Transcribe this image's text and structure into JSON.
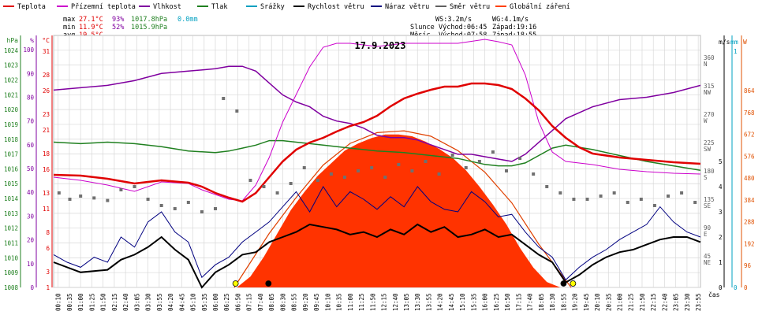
{
  "legend": [
    {
      "label": "Teplota",
      "color": "#e00000"
    },
    {
      "label": "Přízemní teplota",
      "color": "#cc00cc"
    },
    {
      "label": "Vlhkost",
      "color": "#8000a0"
    },
    {
      "label": "Tlak",
      "color": "#208020"
    },
    {
      "label": "Srážky",
      "color": "#00a0c0"
    },
    {
      "label": "Rychlost větru",
      "color": "#000000"
    },
    {
      "label": "Náraz větru",
      "color": "#000080"
    },
    {
      "label": "Směr větru",
      "color": "#606060"
    },
    {
      "label": "Globální záření",
      "color": "#ff4000"
    }
  ],
  "stats": {
    "max_label": "max",
    "max_temp": "27.1°C",
    "max_hum": "93%",
    "max_press": "1017.8hPa",
    "max_rain": "0.0mm",
    "min_label": "min",
    "min_temp": "11.9°C",
    "min_hum": "52%",
    "min_press": "1015.9hPa",
    "avg_label": "avg",
    "avg_temp": "19.5°C",
    "ws": "WS:3.2m/s",
    "wg": "WG:4.1m/s",
    "sun_label": "Slunce",
    "sun_rise": "Východ:06:45",
    "sun_set": "Západ:19:16",
    "moon_label": "Měsíc",
    "moon_rise": "Východ:07:58",
    "moon_set": "Západ:18:55"
  },
  "colors": {
    "temp": "#e00000",
    "ground": "#cc00cc",
    "hum": "#8000a0",
    "press": "#208020",
    "rain": "#00a0c0",
    "wind": "#000000",
    "gust": "#000080",
    "dir": "#707070",
    "rad": "#ff3300",
    "rad_clear": "#e04000",
    "grid": "#d8d8d8",
    "axis_orange": "#e05000"
  },
  "chart_data": {
    "type": "line",
    "title": "17.9.2023",
    "x_label": "čas",
    "x_ticks": [
      "00:10",
      "00:35",
      "01:00",
      "01:25",
      "01:50",
      "02:15",
      "02:40",
      "03:05",
      "03:30",
      "03:55",
      "04:20",
      "04:45",
      "05:10",
      "05:35",
      "06:00",
      "06:25",
      "06:50",
      "07:15",
      "07:40",
      "08:05",
      "08:30",
      "08:55",
      "09:20",
      "09:45",
      "10:10",
      "10:35",
      "11:00",
      "11:25",
      "11:50",
      "12:15",
      "12:40",
      "13:05",
      "13:30",
      "13:55",
      "14:20",
      "14:45",
      "15:10",
      "15:35",
      "16:00",
      "16:25",
      "16:50",
      "17:15",
      "17:40",
      "18:05",
      "18:30",
      "18:55",
      "19:20",
      "19:45",
      "20:10",
      "20:35",
      "21:00",
      "21:25",
      "21:50",
      "22:15",
      "22:40",
      "23:05",
      "23:30",
      "23:55"
    ],
    "axes": {
      "hpa": {
        "label": "hPa",
        "ticks": [
          "1008",
          "1009",
          "1010",
          "1011",
          "1012",
          "1013",
          "1014",
          "1015",
          "1016",
          "1017",
          "1018",
          "1019",
          "1020",
          "1021",
          "1022",
          "1023",
          "1024"
        ],
        "range": [
          1008,
          1025
        ]
      },
      "hum": {
        "label": "%",
        "ticks": [
          "0",
          "10",
          "20",
          "30",
          "40",
          "50",
          "60",
          "70",
          "80",
          "90",
          "100"
        ],
        "range": [
          0,
          106
        ]
      },
      "temp": {
        "label": "°C",
        "ticks": [
          "1",
          "3",
          "6",
          "8",
          "11",
          "13",
          "16",
          "18",
          "21",
          "23",
          "26",
          "28",
          "31"
        ],
        "range": [
          1,
          33
        ]
      },
      "dir": {
        "label": "m/s",
        "ticks": [
          "45 NE",
          "90 E",
          "135 SE",
          "180 S",
          "225 SW",
          "270 W",
          "315 NW",
          "360 N"
        ],
        "range": [
          0,
          400
        ]
      },
      "ms": {
        "label": "m/s",
        "ticks": [
          "0",
          "1",
          "2",
          "3",
          "4",
          "5"
        ],
        "range": [
          0,
          10
        ]
      },
      "mm": {
        "label": "mm",
        "ticks": [
          "0",
          "1"
        ],
        "range": [
          0,
          1
        ]
      },
      "w": {
        "label": "W",
        "ticks": [
          "0",
          "96",
          "192",
          "288",
          "384",
          "480",
          "576",
          "672",
          "768",
          "864"
        ],
        "range": [
          0,
          1400
        ]
      }
    },
    "series": [
      {
        "name": "Teplota",
        "unit": "°C",
        "x": [
          0,
          1,
          2,
          3,
          4,
          5,
          5.5,
          6,
          6.5,
          7,
          7.5,
          8,
          8.5,
          9,
          9.5,
          10,
          10.5,
          11,
          11.5,
          12,
          12.5,
          13,
          13.5,
          14,
          14.5,
          15,
          15.5,
          16,
          16.5,
          17,
          17.5,
          18,
          18.5,
          19,
          19.5,
          20,
          21,
          22,
          23,
          24
        ],
        "y": [
          15.3,
          15.2,
          14.8,
          14.2,
          14.6,
          14.3,
          13.8,
          13.0,
          12.4,
          11.9,
          13.0,
          15.0,
          17.0,
          18.5,
          19.4,
          20.0,
          20.8,
          21.5,
          22.0,
          22.8,
          24.0,
          25.0,
          25.6,
          26.1,
          26.5,
          26.5,
          26.9,
          26.9,
          26.7,
          26.2,
          25.0,
          23.5,
          21.5,
          20.0,
          18.8,
          18.0,
          17.5,
          17.2,
          16.9,
          16.7
        ]
      },
      {
        "name": "Přízemní teplota",
        "unit": "°C",
        "x": [
          0,
          1,
          2,
          3,
          4,
          5,
          5.5,
          6,
          6.5,
          7,
          7.5,
          8,
          8.5,
          9,
          9.5,
          10,
          10.5,
          11,
          12,
          13,
          14,
          15,
          16,
          16.5,
          17,
          17.5,
          18,
          18.5,
          19,
          20,
          21,
          22,
          23,
          24
        ],
        "y": [
          15.0,
          14.6,
          14.0,
          13.2,
          14.4,
          14.2,
          13.4,
          12.8,
          12.2,
          12.0,
          14.0,
          17.5,
          22.0,
          25.5,
          29.0,
          31.5,
          32.0,
          32.0,
          31.6,
          32.0,
          32.0,
          32.0,
          32.5,
          32.2,
          31.8,
          28.0,
          22.0,
          18.2,
          17.0,
          16.6,
          16.0,
          15.7,
          15.5,
          15.4
        ]
      },
      {
        "name": "Vlhkost",
        "unit": "%",
        "x": [
          0,
          1,
          2,
          3,
          4,
          5,
          6,
          6.5,
          7,
          7.5,
          8,
          8.5,
          9,
          9.5,
          10,
          10.5,
          11,
          11.5,
          12,
          12.5,
          13,
          13.5,
          14,
          14.5,
          15,
          15.5,
          16,
          16.5,
          17,
          17.5,
          18,
          18.5,
          19,
          20,
          21,
          22,
          23,
          24
        ],
        "y": [
          83,
          84,
          85,
          87,
          90,
          91,
          92,
          93,
          93,
          91,
          86,
          81,
          78,
          76,
          72,
          70,
          69,
          67,
          64,
          63,
          63,
          62,
          60,
          58,
          56,
          56,
          55,
          54,
          53,
          56,
          61,
          66,
          71,
          76,
          79,
          80,
          82,
          85
        ]
      },
      {
        "name": "Tlak",
        "unit": "hPa",
        "x": [
          0,
          1,
          2,
          3,
          4,
          5,
          6,
          6.5,
          7,
          7.5,
          8,
          8.5,
          9,
          9.5,
          10,
          11,
          12,
          13,
          14,
          15,
          16,
          16.5,
          17,
          17.5,
          18,
          18.5,
          19,
          20,
          21,
          22,
          23,
          24
        ],
        "y": [
          1017.8,
          1017.7,
          1017.8,
          1017.7,
          1017.5,
          1017.2,
          1017.1,
          1017.2,
          1017.4,
          1017.6,
          1017.9,
          1017.9,
          1017.8,
          1017.7,
          1017.6,
          1017.4,
          1017.2,
          1017.1,
          1016.9,
          1016.7,
          1016.3,
          1016.2,
          1016.2,
          1016.4,
          1016.9,
          1017.4,
          1017.6,
          1017.3,
          1016.9,
          1016.5,
          1016.2,
          1015.9
        ]
      },
      {
        "name": "Rychlost větru",
        "unit": "m/s",
        "x": [
          0,
          1,
          2,
          2.5,
          3,
          3.5,
          4,
          4.5,
          5,
          5.5,
          6,
          6.5,
          7,
          7.5,
          8,
          8.5,
          9,
          9.5,
          10,
          10.5,
          11,
          11.5,
          12,
          12.5,
          13,
          13.5,
          14,
          14.5,
          15,
          15.5,
          16,
          16.5,
          17,
          17.5,
          18,
          18.5,
          19,
          19.5,
          20,
          20.5,
          21,
          21.5,
          22,
          22.5,
          23,
          23.5,
          24
        ],
        "y": [
          1.0,
          0.6,
          0.7,
          1.1,
          1.3,
          1.6,
          2.0,
          1.5,
          1.1,
          0.0,
          0.6,
          0.9,
          1.3,
          1.4,
          1.8,
          2.0,
          2.2,
          2.5,
          2.4,
          2.3,
          2.1,
          2.2,
          2.0,
          2.3,
          2.1,
          2.5,
          2.2,
          2.4,
          2.0,
          2.1,
          2.3,
          2.0,
          2.1,
          1.7,
          1.3,
          1.0,
          0.2,
          0.5,
          0.9,
          1.2,
          1.4,
          1.5,
          1.7,
          1.9,
          2.0,
          2.0,
          1.8
        ]
      },
      {
        "name": "Náraz větru",
        "unit": "m/s",
        "x": [
          0,
          0.5,
          1,
          1.5,
          2,
          2.5,
          3,
          3.5,
          4,
          4.5,
          5,
          5.5,
          6,
          6.5,
          7,
          7.5,
          8,
          8.5,
          9,
          9.5,
          10,
          10.5,
          11,
          11.5,
          12,
          12.5,
          13,
          13.5,
          14,
          14.5,
          15,
          15.5,
          16,
          16.5,
          17,
          17.5,
          18,
          18.5,
          19,
          19.5,
          20,
          20.5,
          21,
          21.5,
          22,
          22.5,
          23,
          23.5,
          24
        ],
        "y": [
          1.3,
          1.0,
          0.8,
          1.2,
          1.0,
          2.0,
          1.6,
          2.6,
          3.0,
          2.2,
          1.8,
          0.4,
          0.9,
          1.2,
          1.8,
          2.2,
          2.6,
          3.2,
          3.8,
          3.0,
          4.0,
          3.2,
          3.8,
          3.5,
          3.1,
          3.6,
          3.2,
          4.0,
          3.4,
          3.1,
          3.0,
          3.8,
          3.4,
          2.8,
          2.9,
          2.2,
          1.6,
          1.2,
          0.3,
          0.8,
          1.2,
          1.5,
          1.9,
          2.2,
          2.5,
          3.2,
          2.6,
          2.2,
          2.0
        ]
      },
      {
        "name": "Směr větru",
        "unit": "°",
        "x": [
          0.2,
          0.6,
          1.0,
          1.5,
          2.0,
          2.5,
          3.0,
          3.5,
          4.0,
          4.5,
          5.0,
          5.5,
          6.0,
          6.3,
          6.8,
          7.3,
          7.8,
          8.3,
          8.8,
          9.3,
          9.8,
          10.3,
          10.8,
          11.3,
          11.8,
          12.3,
          12.8,
          13.3,
          13.8,
          14.3,
          14.8,
          15.3,
          15.8,
          16.3,
          16.8,
          17.3,
          17.8,
          18.3,
          18.8,
          19.3,
          19.8,
          20.3,
          20.8,
          21.3,
          21.8,
          22.3,
          22.8,
          23.3,
          23.8
        ],
        "y": [
          150,
          140,
          145,
          142,
          138,
          155,
          160,
          140,
          130,
          125,
          135,
          120,
          125,
          300,
          280,
          170,
          160,
          150,
          165,
          190,
          170,
          180,
          175,
          185,
          190,
          175,
          195,
          185,
          200,
          180,
          210,
          190,
          200,
          215,
          185,
          205,
          180,
          160,
          150,
          140,
          140,
          145,
          150,
          135,
          140,
          130,
          145,
          150,
          135
        ]
      },
      {
        "name": "Globální záření",
        "unit": "W",
        "x": [
          6.8,
          7.3,
          7.8,
          8.3,
          8.8,
          9.3,
          9.8,
          10.3,
          10.8,
          11.3,
          11.8,
          12.3,
          12.8,
          13.3,
          13.8,
          14.3,
          14.8,
          15.3,
          15.8,
          16.3,
          16.8,
          17.3,
          17.8,
          18.3,
          18.8
        ],
        "y": [
          0,
          60,
          170,
          300,
          430,
          530,
          620,
          690,
          760,
          800,
          830,
          850,
          850,
          840,
          810,
          770,
          720,
          650,
          560,
          460,
          350,
          220,
          110,
          30,
          0
        ]
      },
      {
        "name": "clear-sky",
        "unit": "W",
        "x": [
          6.7,
          8,
          9,
          10,
          11,
          12,
          13,
          14,
          15,
          16,
          17,
          18,
          19.2
        ],
        "y": [
          0,
          300,
          500,
          680,
          800,
          860,
          870,
          840,
          760,
          640,
          470,
          240,
          0
        ]
      }
    ]
  }
}
